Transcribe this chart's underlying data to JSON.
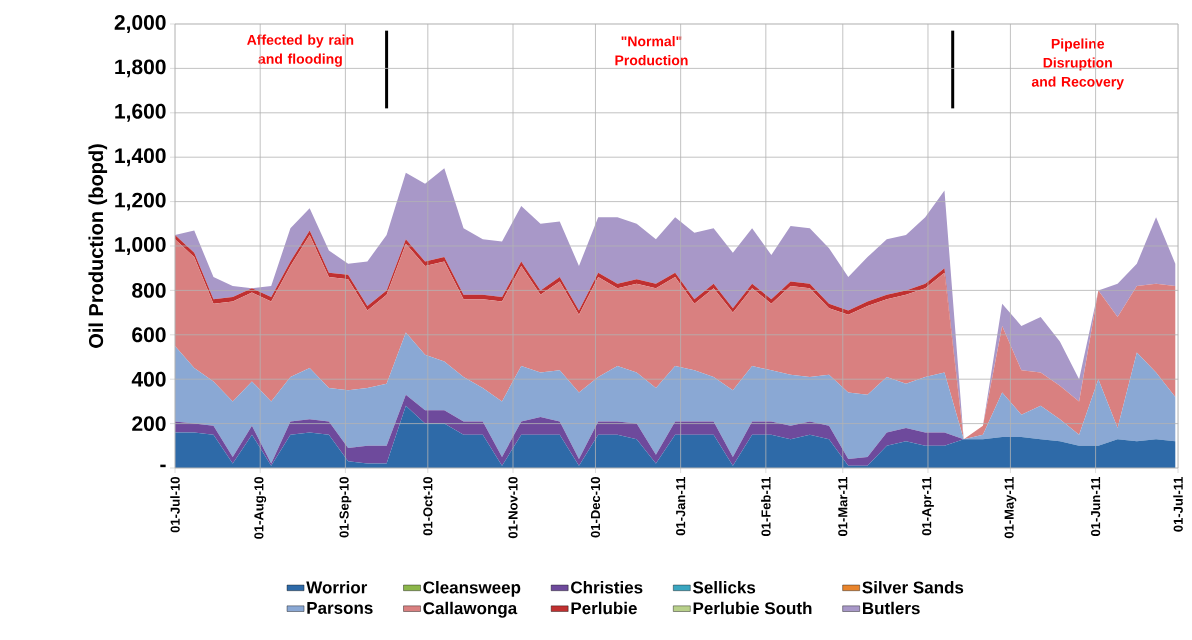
{
  "chart_data": {
    "type": "area",
    "stacked": true,
    "ylabel": "Oil Production (bopd)",
    "x": [
      "2010-07-01",
      "2010-07-08",
      "2010-07-15",
      "2010-07-22",
      "2010-07-29",
      "2010-08-05",
      "2010-08-12",
      "2010-08-19",
      "2010-08-26",
      "2010-09-02",
      "2010-09-09",
      "2010-09-16",
      "2010-09-23",
      "2010-09-30",
      "2010-10-07",
      "2010-10-14",
      "2010-10-21",
      "2010-10-28",
      "2010-11-04",
      "2010-11-11",
      "2010-11-18",
      "2010-11-25",
      "2010-12-02",
      "2010-12-09",
      "2010-12-16",
      "2010-12-23",
      "2010-12-30",
      "2011-01-06",
      "2011-01-13",
      "2011-01-20",
      "2011-01-27",
      "2011-02-03",
      "2011-02-10",
      "2011-02-17",
      "2011-02-24",
      "2011-03-03",
      "2011-03-10",
      "2011-03-17",
      "2011-03-24",
      "2011-03-31",
      "2011-04-07",
      "2011-04-14",
      "2011-04-21",
      "2011-04-28",
      "2011-05-05",
      "2011-05-12",
      "2011-05-19",
      "2011-05-26",
      "2011-06-02",
      "2011-06-09",
      "2011-06-16",
      "2011-06-23",
      "2011-06-30"
    ],
    "series": [
      {
        "name": "Worrior",
        "color": "#2e6aa8",
        "values": [
          160,
          160,
          150,
          20,
          150,
          10,
          150,
          160,
          150,
          30,
          20,
          20,
          280,
          200,
          200,
          150,
          150,
          10,
          150,
          150,
          150,
          10,
          150,
          150,
          130,
          20,
          150,
          150,
          150,
          10,
          150,
          150,
          130,
          150,
          130,
          10,
          10,
          100,
          120,
          100,
          100,
          130,
          130,
          140,
          140,
          130,
          120,
          100,
          100,
          130,
          120,
          130,
          120
        ]
      },
      {
        "name": "Cleansweep",
        "color": "#8cb64a",
        "values": [
          null,
          null,
          null,
          null,
          null,
          null,
          null,
          null,
          null,
          null,
          null,
          null,
          null,
          null,
          null,
          null,
          null,
          null,
          null,
          null,
          null,
          null,
          null,
          null,
          null,
          null,
          null,
          null,
          null,
          null,
          null,
          null,
          null,
          null,
          null,
          null,
          null,
          null,
          null,
          null,
          null,
          null,
          null,
          null,
          null,
          null,
          null,
          null,
          null,
          null,
          null,
          null,
          null
        ]
      },
      {
        "name": "Christies",
        "color": "#6e4a9c",
        "values": [
          50,
          40,
          40,
          30,
          40,
          10,
          60,
          60,
          60,
          60,
          80,
          80,
          50,
          60,
          60,
          60,
          60,
          40,
          60,
          80,
          60,
          30,
          60,
          60,
          70,
          40,
          60,
          60,
          60,
          40,
          60,
          60,
          60,
          60,
          60,
          30,
          40,
          60,
          60,
          60,
          60,
          0,
          0,
          0,
          0,
          0,
          0,
          0,
          0,
          0,
          0,
          0,
          0
        ]
      },
      {
        "name": "Sellicks",
        "color": "#3aa6c0",
        "values": [
          null,
          null,
          null,
          null,
          null,
          null,
          null,
          null,
          null,
          null,
          null,
          null,
          null,
          null,
          null,
          null,
          null,
          null,
          null,
          null,
          null,
          null,
          null,
          null,
          null,
          null,
          null,
          null,
          null,
          null,
          null,
          null,
          null,
          null,
          null,
          null,
          null,
          null,
          null,
          null,
          null,
          null,
          null,
          null,
          null,
          null,
          null,
          null,
          null,
          null,
          null,
          null,
          null
        ]
      },
      {
        "name": "Silver Sands",
        "color": "#e8842c",
        "values": [
          null,
          null,
          null,
          null,
          null,
          null,
          null,
          null,
          null,
          null,
          null,
          null,
          null,
          null,
          null,
          null,
          null,
          null,
          null,
          null,
          null,
          null,
          null,
          null,
          null,
          null,
          null,
          null,
          null,
          null,
          null,
          null,
          null,
          null,
          null,
          null,
          null,
          null,
          null,
          null,
          null,
          null,
          null,
          null,
          null,
          null,
          null,
          null,
          null,
          null,
          null,
          null,
          null
        ]
      },
      {
        "name": "Parsons",
        "color": "#8aa8d4",
        "values": [
          340,
          250,
          200,
          250,
          200,
          280,
          200,
          230,
          150,
          260,
          260,
          280,
          280,
          250,
          220,
          200,
          150,
          250,
          250,
          200,
          230,
          300,
          200,
          250,
          230,
          300,
          250,
          230,
          200,
          300,
          250,
          230,
          230,
          200,
          230,
          300,
          280,
          250,
          200,
          250,
          270,
          0,
          20,
          200,
          100,
          150,
          100,
          50,
          300,
          50,
          400,
          300,
          200
        ]
      },
      {
        "name": "Callawonga",
        "color": "#d98080",
        "values": [
          480,
          500,
          350,
          450,
          400,
          450,
          500,
          600,
          500,
          500,
          350,
          400,
          400,
          400,
          450,
          350,
          400,
          450,
          450,
          350,
          400,
          350,
          450,
          350,
          400,
          450,
          400,
          300,
          400,
          350,
          350,
          300,
          400,
          400,
          300,
          350,
          400,
          350,
          400,
          400,
          450,
          0,
          40,
          300,
          200,
          150,
          150,
          150,
          400,
          500,
          300,
          400,
          500
        ]
      },
      {
        "name": "Perlubie",
        "color": "#c03030",
        "values": [
          20,
          20,
          20,
          20,
          20,
          20,
          20,
          20,
          20,
          20,
          20,
          20,
          20,
          20,
          20,
          20,
          20,
          20,
          20,
          20,
          20,
          20,
          20,
          20,
          20,
          20,
          20,
          20,
          20,
          20,
          20,
          20,
          20,
          20,
          20,
          20,
          20,
          20,
          20,
          20,
          20,
          0,
          0,
          0,
          0,
          0,
          0,
          0,
          0,
          0,
          0,
          0,
          0
        ]
      },
      {
        "name": "Perlubie South",
        "color": "#b8d08a",
        "values": [
          null,
          null,
          null,
          null,
          null,
          null,
          null,
          null,
          null,
          null,
          null,
          null,
          null,
          null,
          null,
          null,
          null,
          null,
          null,
          null,
          null,
          null,
          null,
          null,
          null,
          null,
          null,
          null,
          null,
          null,
          null,
          null,
          null,
          null,
          null,
          null,
          null,
          null,
          null,
          null,
          null,
          null,
          null,
          null,
          null,
          null,
          null,
          null,
          null,
          null,
          null,
          null,
          null
        ]
      },
      {
        "name": "Butlers",
        "color": "#a898c8",
        "values": [
          0,
          100,
          100,
          50,
          0,
          50,
          150,
          100,
          100,
          50,
          200,
          250,
          300,
          350,
          400,
          300,
          250,
          250,
          250,
          300,
          250,
          200,
          250,
          300,
          250,
          200,
          250,
          300,
          250,
          250,
          250,
          200,
          250,
          250,
          250,
          150,
          200,
          250,
          250,
          300,
          350,
          0,
          0,
          100,
          200,
          250,
          200,
          100,
          0,
          150,
          100,
          300,
          100
        ]
      }
    ],
    "xlim": [
      "2010-07-01",
      "2011-07-01"
    ],
    "xticks": [
      {
        "value": "2010-07-01",
        "label": "01-Jul-10"
      },
      {
        "value": "2010-08-01",
        "label": "01-Aug-10"
      },
      {
        "value": "2010-09-01",
        "label": "01-Sep-10"
      },
      {
        "value": "2010-10-01",
        "label": "01-Oct-10"
      },
      {
        "value": "2010-11-01",
        "label": "01-Nov-10"
      },
      {
        "value": "2010-12-01",
        "label": "01-Dec-10"
      },
      {
        "value": "2011-01-01",
        "label": "01-Jan-11"
      },
      {
        "value": "2011-02-01",
        "label": "01-Feb-11"
      },
      {
        "value": "2011-03-01",
        "label": "01-Mar-11"
      },
      {
        "value": "2011-04-01",
        "label": "01-Apr-11"
      },
      {
        "value": "2011-05-01",
        "label": "01-May-11"
      },
      {
        "value": "2011-06-01",
        "label": "01-Jun-11"
      },
      {
        "value": "2011-07-01",
        "label": "01-Jul-11"
      }
    ],
    "ylim": [
      0,
      2000
    ],
    "yticks": [
      {
        "value": 0,
        "label": "-"
      },
      {
        "value": 200,
        "label": "200"
      },
      {
        "value": 400,
        "label": "400"
      },
      {
        "value": 600,
        "label": "600"
      },
      {
        "value": 800,
        "label": "800"
      },
      {
        "value": 1000,
        "label": "1,000"
      },
      {
        "value": 1200,
        "label": "1,200"
      },
      {
        "value": 1400,
        "label": "1,400"
      },
      {
        "value": 1600,
        "label": "1,600"
      },
      {
        "value": 1800,
        "label": "1,800"
      },
      {
        "value": 2000,
        "label": "2,000"
      }
    ],
    "ref_lines": [
      {
        "axis": "x",
        "value": "2010-09-16",
        "color": "#000000"
      },
      {
        "axis": "x",
        "value": "2011-04-10",
        "color": "#000000"
      }
    ],
    "annotations": [
      "Affected by rain and flooding",
      "\"Normal\" Production",
      "Pipeline Disruption and Recovery"
    ],
    "grid": true,
    "legend": "bottom"
  }
}
